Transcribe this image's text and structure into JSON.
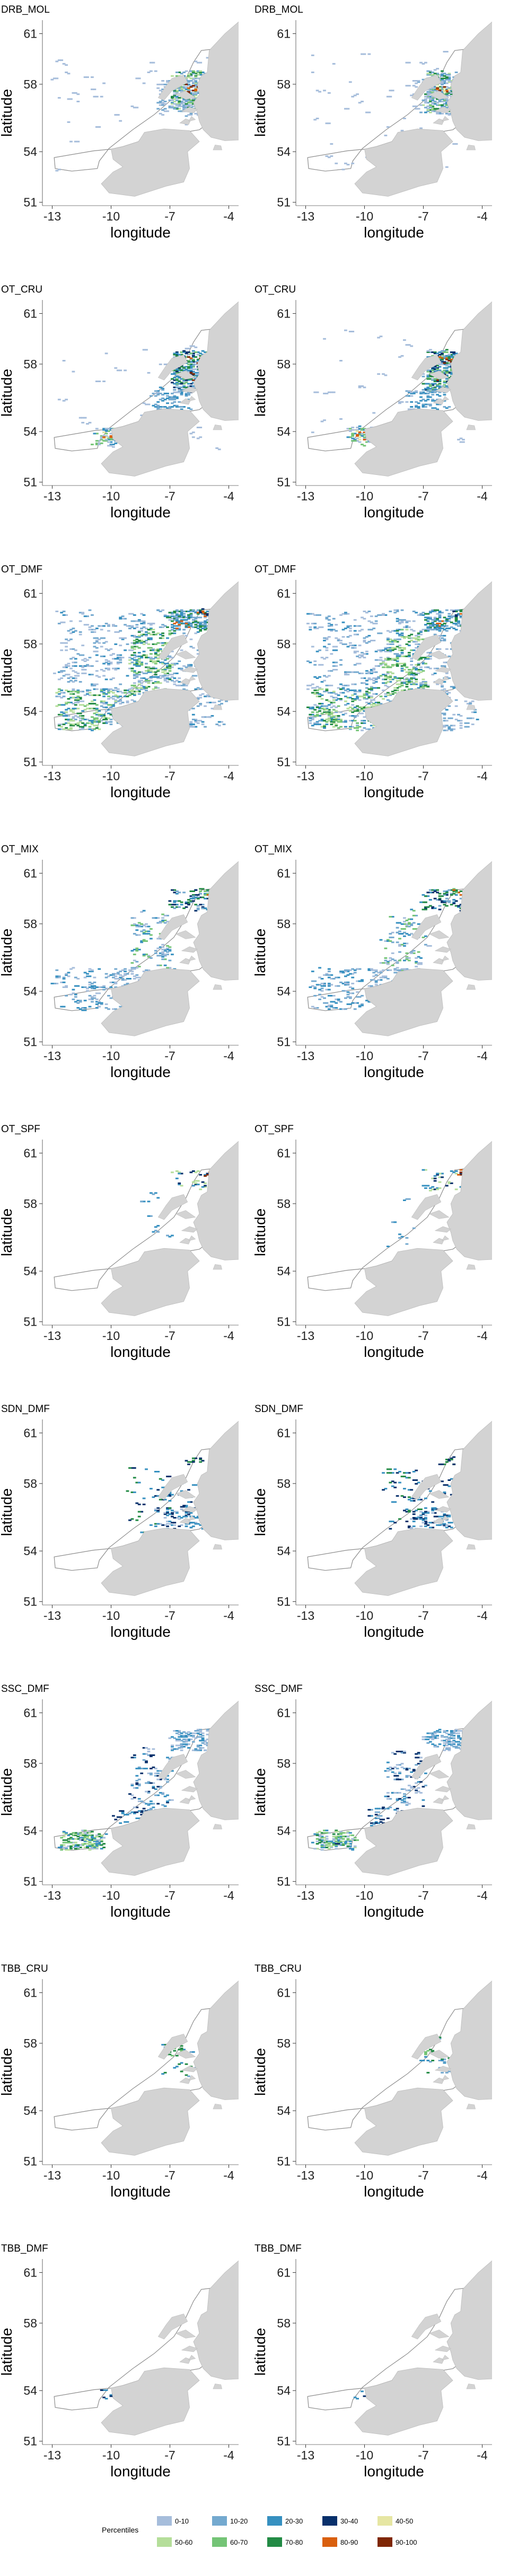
{
  "chart_data": {
    "type": "heatmap",
    "xlabel": "longitude",
    "ylabel": "latitude",
    "x_ticks": [
      "-13",
      "-10",
      "-7",
      "-4"
    ],
    "y_ticks": [
      "61",
      "58",
      "54",
      "51"
    ],
    "xlim": [
      -13.5,
      -3.5
    ],
    "ylim": [
      50.8,
      61.8
    ],
    "grid": false,
    "panels": [
      {
        "label": "DRB_MOL"
      },
      {
        "label": "DRB_MOL"
      },
      {
        "label": "OT_CRU"
      },
      {
        "label": "OT_CRU"
      },
      {
        "label": "OT_DMF"
      },
      {
        "label": "OT_DMF"
      },
      {
        "label": "OT_MIX"
      },
      {
        "label": "OT_MIX"
      },
      {
        "label": "OT_SPF"
      },
      {
        "label": "OT_SPF"
      },
      {
        "label": "SDN_DMF"
      },
      {
        "label": "SDN_DMF"
      },
      {
        "label": "SSC_DMF"
      },
      {
        "label": "SSC_DMF"
      },
      {
        "label": "TBB_CRU"
      },
      {
        "label": "TBB_CRU"
      },
      {
        "label": "TBB_DMF"
      },
      {
        "label": "TBB_DMF"
      }
    ],
    "legend": {
      "title": "Percentiles",
      "position": "bottom",
      "items": [
        {
          "label": "0-10",
          "color": "#a6bddb"
        },
        {
          "label": "10-20",
          "color": "#74a9cf"
        },
        {
          "label": "20-30",
          "color": "#3690c0"
        },
        {
          "label": "30-40",
          "color": "#08306b"
        },
        {
          "label": "40-50",
          "color": "#e6e6a3"
        },
        {
          "label": "50-60",
          "color": "#b5de9a"
        },
        {
          "label": "60-70",
          "color": "#74c476"
        },
        {
          "label": "70-80",
          "color": "#238b45"
        },
        {
          "label": "80-90",
          "color": "#d95f0e"
        },
        {
          "label": "90-100",
          "color": "#7f2704"
        }
      ]
    },
    "land_color": "#d3d3d3",
    "boundary_color": "#8c8c8c"
  }
}
